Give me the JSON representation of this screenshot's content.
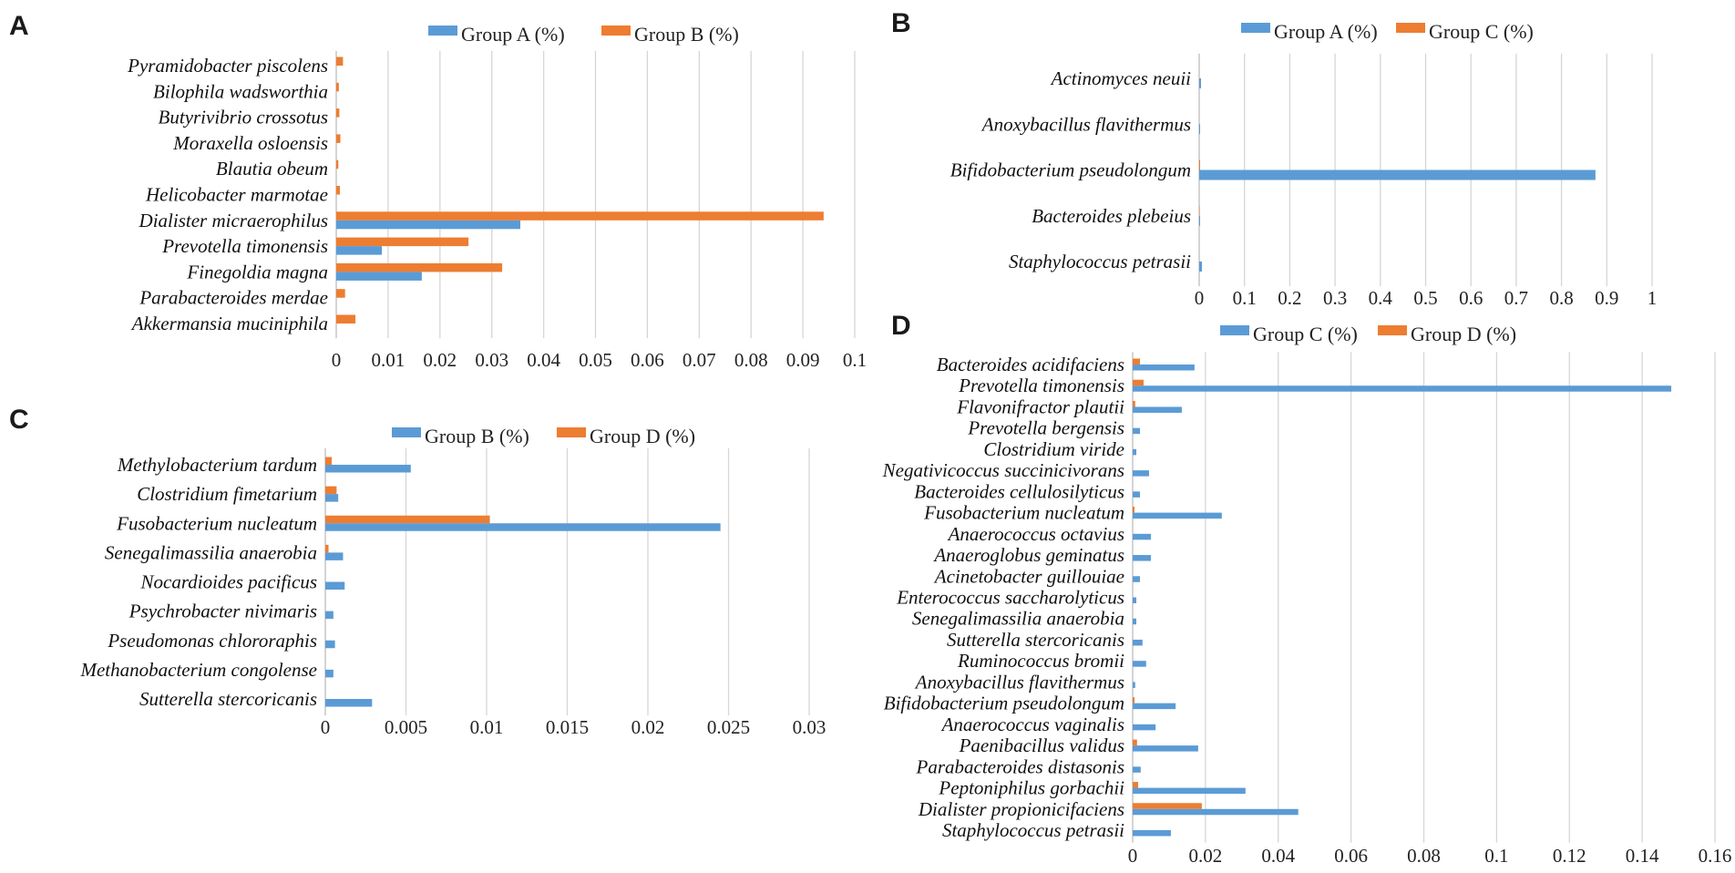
{
  "colors": {
    "series_1": "#5b9bd5",
    "series_2": "#ed7d31"
  },
  "chart_data": [
    {
      "panel": "A",
      "type": "bar",
      "orientation": "horizontal",
      "title": "",
      "xlabel": "",
      "ylabel": "",
      "xlim": [
        0,
        0.1
      ],
      "ticks": [
        "0",
        "0.01",
        "0.02",
        "0.03",
        "0.04",
        "0.05",
        "0.06",
        "0.07",
        "0.08",
        "0.09",
        "0.1"
      ],
      "tick_values": [
        0,
        0.01,
        0.02,
        0.03,
        0.04,
        0.05,
        0.06,
        0.07,
        0.08,
        0.09,
        0.1
      ],
      "legend_position": "top",
      "categories": [
        "Pyramidobacter piscolens",
        "Bilophila wadsworthia",
        "Butyrivibrio crossotus",
        "Moraxella osloensis",
        "Blautia obeum",
        "Helicobacter marmotae",
        "Dialister micraerophilus",
        "Prevotella timonensis",
        "Finegoldia magna",
        "Parabacteroides merdae",
        "Akkermansia muciniphila"
      ],
      "series": [
        {
          "name": "Group A (%)",
          "values": [
            0,
            0,
            0,
            0,
            0,
            0,
            0.0355,
            0.0088,
            0.0165,
            0,
            0
          ]
        },
        {
          "name": "Group B (%)",
          "values": [
            0.0013,
            0.0005,
            0.0006,
            0.0008,
            0.0004,
            0.0007,
            0.094,
            0.0255,
            0.032,
            0.0017,
            0.0037
          ]
        }
      ]
    },
    {
      "panel": "B",
      "type": "bar",
      "orientation": "horizontal",
      "title": "",
      "xlabel": "",
      "ylabel": "",
      "xlim": [
        0,
        1
      ],
      "ticks": [
        "0",
        "0.1",
        "0.2",
        "0.3",
        "0.4",
        "0.5",
        "0.6",
        "0.7",
        "0.8",
        "0.9",
        "1"
      ],
      "tick_values": [
        0,
        0.1,
        0.2,
        0.3,
        0.4,
        0.5,
        0.6,
        0.7,
        0.8,
        0.9,
        1
      ],
      "legend_position": "top",
      "categories": [
        "Actinomyces neuii",
        "Anoxybacillus flavithermus",
        "Bifidobacterium pseudolongum",
        "Bacteroides plebeius",
        "Staphylococcus petrasii"
      ],
      "series": [
        {
          "name": "Group A (%)",
          "values": [
            0.004,
            0.002,
            0.875,
            0.002,
            0.006
          ]
        },
        {
          "name": "Group C (%)",
          "values": [
            0,
            0,
            0.002,
            0.001,
            0
          ]
        }
      ]
    },
    {
      "panel": "C",
      "type": "bar",
      "orientation": "horizontal",
      "title": "",
      "xlabel": "",
      "ylabel": "",
      "xlim": [
        0,
        0.03
      ],
      "ticks": [
        "0",
        "0.005",
        "0.01",
        "0.015",
        "0.02",
        "0.025",
        "0.03"
      ],
      "tick_values": [
        0,
        0.005,
        0.01,
        0.015,
        0.02,
        0.025,
        0.03
      ],
      "legend_position": "top",
      "categories": [
        "Methylobacterium tardum",
        "Clostridium fimetarium",
        "Fusobacterium nucleatum",
        "Senegalimassilia anaerobia",
        "Nocardioides pacificus",
        "Psychrobacter nivimaris",
        "Pseudomonas chlororaphis",
        "Methanobacterium congolense",
        "Sutterella stercoricanis"
      ],
      "series": [
        {
          "name": "Group B (%)",
          "values": [
            0.0053,
            0.0008,
            0.0245,
            0.0011,
            0.0012,
            0.0005,
            0.0006,
            0.0005,
            0.0029
          ]
        },
        {
          "name": "Group D (%)",
          "values": [
            0.0004,
            0.0007,
            0.0102,
            0.0002,
            0,
            0,
            0,
            0,
            0
          ]
        }
      ]
    },
    {
      "panel": "D",
      "type": "bar",
      "orientation": "horizontal",
      "title": "",
      "xlabel": "",
      "ylabel": "",
      "xlim": [
        0,
        0.16
      ],
      "ticks": [
        "0",
        "0.02",
        "0.04",
        "0.06",
        "0.08",
        "0.1",
        "0.12",
        "0.14",
        "0.16"
      ],
      "tick_values": [
        0,
        0.02,
        0.04,
        0.06,
        0.08,
        0.1,
        0.12,
        0.14,
        0.16
      ],
      "legend_position": "top",
      "categories": [
        "Bacteroides acidifaciens",
        "Prevotella timonensis",
        "Flavonifractor plautii",
        "Prevotella bergensis",
        "Clostridium viride",
        "Negativicoccus succinicivorans",
        "Bacteroides cellulosilyticus",
        "Fusobacterium nucleatum",
        "Anaerococcus octavius",
        "Anaeroglobus geminatus",
        "Acinetobacter guillouiae",
        "Enterococcus saccharolyticus",
        "Senegalimassilia anaerobia",
        "Sutterella stercoricanis",
        "Ruminococcus bromii",
        "Anoxybacillus flavithermus",
        "Bifidobacterium pseudolongum",
        "Anaerococcus vaginalis",
        "Paenibacillus validus",
        "Parabacteroides distasonis",
        "Peptoniphilus gorbachii",
        "Dialister propionicifaciens",
        "Staphylococcus petrasii"
      ],
      "series": [
        {
          "name": "Group C (%)",
          "values": [
            0.017,
            0.148,
            0.0135,
            0.002,
            0.001,
            0.0045,
            0.002,
            0.0245,
            0.005,
            0.005,
            0.002,
            0.001,
            0.001,
            0.0027,
            0.0037,
            0.0007,
            0.0118,
            0.0063,
            0.018,
            0.0022,
            0.031,
            0.0455,
            0.0105
          ]
        },
        {
          "name": "Group D (%)",
          "values": [
            0.002,
            0.003,
            0.0007,
            0,
            0,
            0,
            0,
            0.0005,
            0,
            0,
            0,
            0,
            0,
            0,
            0,
            0,
            0.0005,
            0,
            0.0012,
            0,
            0.0015,
            0.019,
            0
          ]
        }
      ]
    }
  ]
}
